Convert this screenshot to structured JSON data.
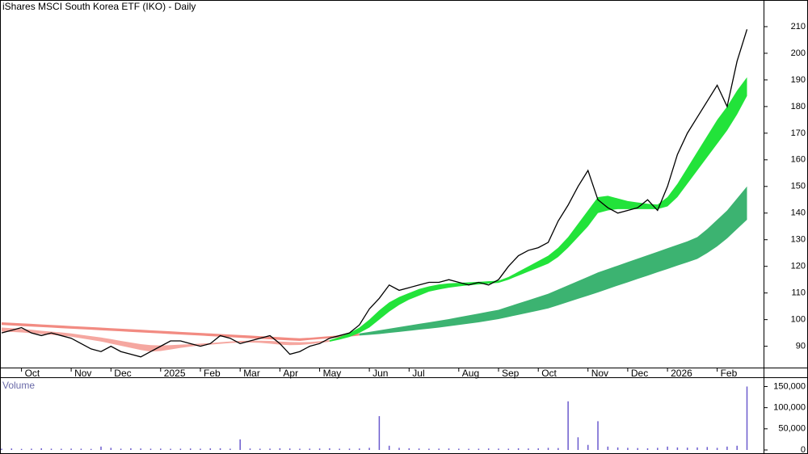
{
  "chart_data": [
    {
      "type": "line",
      "title": "iShares MSCI South Korea ETF (IKO) - Daily",
      "categories": [
        null,
        null,
        "Oct",
        null,
        null,
        null,
        null,
        "Nov",
        null,
        null,
        null,
        "Dec",
        null,
        null,
        null,
        null,
        "2025",
        null,
        null,
        null,
        "Feb",
        null,
        null,
        null,
        "Mar",
        null,
        null,
        null,
        "Apr",
        null,
        null,
        null,
        "May",
        null,
        null,
        null,
        null,
        "Jun",
        null,
        null,
        null,
        "Jul",
        null,
        null,
        null,
        null,
        "Aug",
        null,
        null,
        null,
        "Sep",
        null,
        null,
        null,
        "Oct",
        null,
        null,
        null,
        null,
        "Nov",
        null,
        null,
        null,
        "Dec",
        null,
        null,
        null,
        "2026",
        null,
        null,
        null,
        null,
        "Feb",
        null,
        null,
        null
      ],
      "series": [
        {
          "color": "#000000",
          "values": [
            95,
            96,
            97,
            95,
            94,
            95,
            94,
            93,
            91,
            89,
            88,
            90,
            88,
            87,
            86,
            88,
            90,
            92,
            92,
            91,
            90,
            91,
            94,
            93,
            91,
            92,
            93,
            94,
            91,
            87,
            88,
            90,
            91,
            93,
            94,
            95,
            98,
            104,
            108,
            113,
            111,
            112,
            113,
            114,
            114,
            115,
            114,
            113,
            114,
            113,
            115,
            120,
            124,
            126,
            127,
            129,
            137,
            143,
            150,
            156,
            145,
            142,
            140,
            141,
            142,
            145,
            141,
            150,
            162,
            170,
            176,
            182,
            188,
            180,
            197,
            209
          ]
        }
      ],
      "bands": [
        {
          "color": "#f28b82",
          "upper": [
            99,
            98.8,
            98.6,
            98.4,
            98.2,
            98,
            97.8,
            97.6,
            97.4,
            97.2,
            97,
            96.8,
            96.6,
            96.4,
            96.2,
            96,
            95.8,
            95.6,
            95.4,
            95.2,
            95,
            94.8,
            94.6,
            94.4,
            94.2,
            94,
            93.8,
            93.6,
            93.4,
            93.2,
            93,
            93.2,
            93.5,
            93.8,
            94.1,
            94.4,
            94.8,
            null,
            null,
            null,
            null,
            null,
            null,
            null,
            null,
            null,
            null,
            null,
            null,
            null,
            null,
            null,
            null,
            null,
            null,
            null,
            null,
            null,
            null,
            null,
            null,
            null,
            null,
            null,
            null,
            null,
            null,
            null,
            null,
            null,
            null,
            null,
            null,
            null,
            null,
            null
          ],
          "lower": [
            98,
            97.8,
            97.6,
            97.4,
            97.2,
            97,
            96.8,
            96.6,
            96.4,
            96.2,
            96,
            95.8,
            95.6,
            95.4,
            95.2,
            95,
            94.8,
            94.6,
            94.4,
            94.2,
            94,
            93.8,
            93.6,
            93.4,
            93.2,
            93,
            92.8,
            92.6,
            92.4,
            92.2,
            92,
            92.4,
            92.7,
            93,
            93.3,
            93.6,
            94,
            null,
            null,
            null,
            null,
            null,
            null,
            null,
            null,
            null,
            null,
            null,
            null,
            null,
            null,
            null,
            null,
            null,
            null,
            null,
            null,
            null,
            null,
            null,
            null,
            null,
            null,
            null,
            null,
            null,
            null,
            null,
            null,
            null,
            null,
            null,
            null,
            null,
            null,
            null
          ]
        },
        {
          "color": "#3cb371",
          "upper": [
            null,
            null,
            null,
            null,
            null,
            null,
            null,
            null,
            null,
            null,
            null,
            null,
            null,
            null,
            null,
            null,
            null,
            null,
            null,
            null,
            null,
            null,
            null,
            null,
            null,
            null,
            null,
            null,
            null,
            null,
            null,
            null,
            null,
            null,
            null,
            null,
            94.8,
            95.4,
            96,
            96.6,
            97.2,
            97.8,
            98.4,
            99,
            99.6,
            100.2,
            100.9,
            101.6,
            102.3,
            103,
            103.7,
            104.9,
            106.1,
            107.3,
            108.5,
            109.7,
            111.3,
            112.9,
            114.5,
            116.1,
            117.7,
            119,
            120.3,
            121.6,
            122.9,
            124.2,
            125.5,
            126.8,
            128.1,
            129.4,
            131,
            134,
            137.5,
            141,
            145.5,
            150
          ],
          "lower": [
            null,
            null,
            null,
            null,
            null,
            null,
            null,
            null,
            null,
            null,
            null,
            null,
            null,
            null,
            null,
            null,
            null,
            null,
            null,
            null,
            null,
            null,
            null,
            null,
            null,
            null,
            null,
            null,
            null,
            null,
            null,
            null,
            null,
            null,
            null,
            null,
            94,
            94.3,
            94.6,
            95,
            95.4,
            95.8,
            96.2,
            96.6,
            97,
            97.5,
            98,
            98.5,
            99,
            99.6,
            100.2,
            101,
            101.8,
            102.6,
            103.4,
            104.2,
            105.4,
            106.6,
            107.8,
            109,
            110.2,
            111.5,
            112.8,
            114,
            115.3,
            116.5,
            117.8,
            119,
            120.3,
            121.5,
            122.8,
            125,
            127.5,
            130.5,
            134,
            137.5
          ]
        },
        {
          "color": "#f5a7a0",
          "upper": [
            97,
            96.8,
            96.5,
            96.2,
            95.8,
            95.5,
            95.2,
            94.8,
            94.3,
            93.8,
            93.3,
            92.7,
            92,
            91.4,
            90.8,
            90.4,
            90.3,
            90.4,
            90.6,
            90.8,
            91,
            91.2,
            91.5,
            91.8,
            92,
            92.1,
            92.1,
            92,
            91.8,
            91.6,
            91.5,
            91.6,
            91.9,
            92.3,
            null,
            null,
            null,
            null,
            null,
            null,
            null,
            null,
            null,
            null,
            null,
            null,
            null,
            null,
            null,
            null,
            null,
            null,
            null,
            null,
            null,
            null,
            null,
            null,
            null,
            null,
            null,
            null,
            null,
            null,
            null,
            null,
            null,
            null,
            null,
            null,
            null,
            null,
            null,
            null,
            null,
            null
          ],
          "lower": [
            95.5,
            95.4,
            95.2,
            94.9,
            94.6,
            94.3,
            94,
            93.6,
            93,
            92.4,
            91.8,
            91,
            90.2,
            89.4,
            88.6,
            88,
            88.2,
            88.8,
            89.4,
            89.9,
            90.3,
            90.6,
            90.9,
            91.2,
            91.4,
            91.4,
            91.3,
            91,
            90.6,
            90.4,
            90.5,
            90.8,
            91.2,
            91.7,
            null,
            null,
            null,
            null,
            null,
            null,
            null,
            null,
            null,
            null,
            null,
            null,
            null,
            null,
            null,
            null,
            null,
            null,
            null,
            null,
            null,
            null,
            null,
            null,
            null,
            null,
            null,
            null,
            null,
            null,
            null,
            null,
            null,
            null,
            null,
            null,
            null,
            null,
            null,
            null,
            null,
            null
          ]
        },
        {
          "color": "#22e33a",
          "upper": [
            null,
            null,
            null,
            null,
            null,
            null,
            null,
            null,
            null,
            null,
            null,
            null,
            null,
            null,
            null,
            null,
            null,
            null,
            null,
            null,
            null,
            null,
            null,
            null,
            null,
            null,
            null,
            null,
            null,
            null,
            null,
            null,
            null,
            92.3,
            93.5,
            95,
            97,
            100,
            103.5,
            106.5,
            108.5,
            110,
            111.5,
            112.5,
            113.2,
            113.6,
            113.8,
            114,
            114.2,
            114.4,
            114.6,
            116,
            118,
            120,
            122,
            124,
            127,
            131,
            136,
            141,
            146,
            146.5,
            145.5,
            144.5,
            144,
            143.5,
            143.2,
            146,
            151,
            157,
            163,
            169,
            175,
            180,
            186,
            191
          ],
          "lower": [
            null,
            null,
            null,
            null,
            null,
            null,
            null,
            null,
            null,
            null,
            null,
            null,
            null,
            null,
            null,
            null,
            null,
            null,
            null,
            null,
            null,
            null,
            null,
            null,
            null,
            null,
            null,
            null,
            null,
            null,
            null,
            null,
            null,
            91.7,
            92.5,
            93.5,
            95,
            97,
            100,
            103,
            105.5,
            107.5,
            109,
            110.5,
            111.3,
            112,
            112.5,
            112.9,
            113.2,
            113.5,
            113.8,
            115,
            116.5,
            118,
            119.5,
            121,
            123.5,
            127,
            131,
            135,
            140,
            141,
            141.5,
            141.5,
            141.5,
            141.5,
            141.5,
            142.5,
            146,
            151,
            156,
            161,
            166,
            171,
            177,
            184
          ]
        }
      ],
      "ylim": [
        82,
        220
      ],
      "yticks": [
        90,
        100,
        110,
        120,
        130,
        140,
        150,
        160,
        170,
        180,
        190,
        200,
        210
      ]
    },
    {
      "type": "bar",
      "title": "Volume",
      "color": "#6a5acd",
      "values": [
        3000,
        3500,
        2500,
        3000,
        4000,
        3000,
        2800,
        3200,
        3000,
        2500,
        8000,
        5000,
        3000,
        4000,
        3500,
        3000,
        3200,
        2800,
        3000,
        3500,
        3000,
        3800,
        4000,
        3000,
        25000,
        3500,
        3000,
        3200,
        4000,
        3500,
        3000,
        3200,
        3500,
        4000,
        3000,
        3200,
        3500,
        5000,
        80000,
        10000,
        5000,
        4000,
        3500,
        3000,
        3200,
        3500,
        3000,
        2800,
        3000,
        3500,
        3200,
        3000,
        4000,
        3500,
        3800,
        5000,
        4500,
        115000,
        30000,
        12000,
        68000,
        8000,
        6000,
        5000,
        4500,
        4000,
        5000,
        8000,
        6000,
        5500,
        6000,
        7000,
        5000,
        8000,
        10000,
        150000
      ],
      "ylim": [
        0,
        170000
      ],
      "yticks": [
        0,
        {
          "value": 50000,
          "label": "50,000"
        },
        {
          "value": 100000,
          "label": "100,000"
        },
        {
          "value": 150000,
          "label": "150,000"
        }
      ]
    }
  ]
}
